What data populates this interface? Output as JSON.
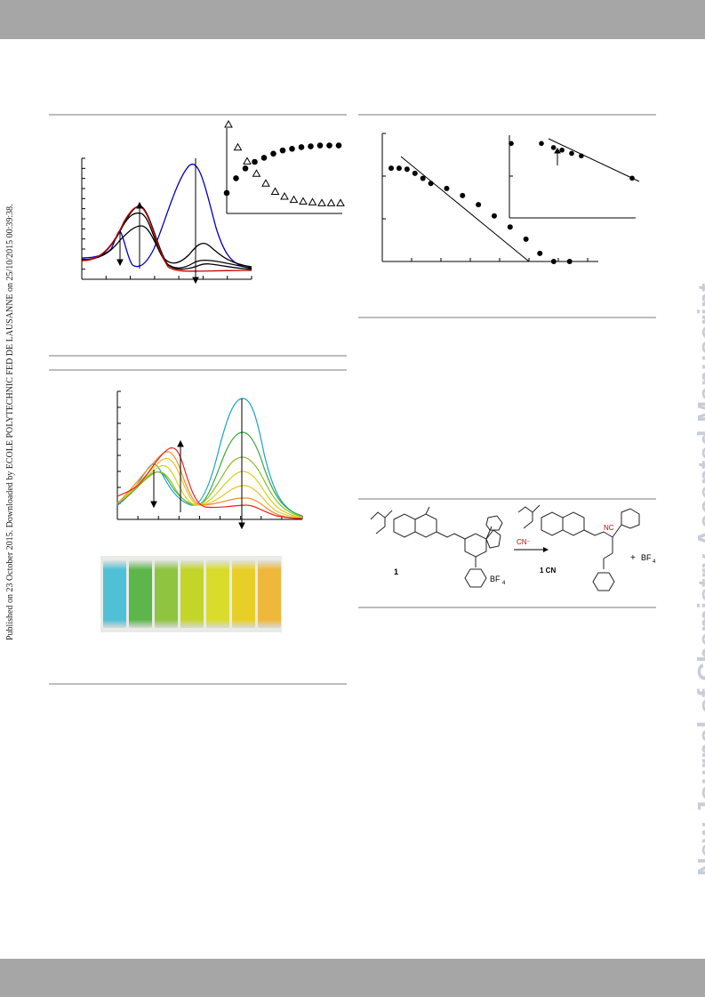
{
  "side_note": "Published on 23 October 2015. Downloaded by ECOLE POLYTECHNIC FED DE LAUSANNE on 25/10/2015 00:39:38.",
  "watermark": "New Journal of Chemistry Accepted Manuscript",
  "scheme": {
    "compound_1": "1",
    "product": "1 CN",
    "reagent": "CN⁻",
    "bf4_left": "BF",
    "bf4_right": "BF",
    "plus": "+",
    "nc_label": "NC"
  },
  "vials": {
    "colors": [
      "#4fc0d6",
      "#5cb64a",
      "#8ec43f",
      "#c4d52a",
      "#d9dc2a",
      "#e8cf27",
      "#efb83a"
    ]
  },
  "chart_data": [
    {
      "type": "line",
      "panel": "fig1-main",
      "series_colors": [
        "#0000cc",
        "#000000",
        "#cc0000"
      ]
    },
    {
      "type": "scatter",
      "panel": "fig1-inset",
      "series": [
        {
          "marker": "filled-circle",
          "values": [
            0.12,
            0.3,
            0.42,
            0.5,
            0.55,
            0.6,
            0.64,
            0.66,
            0.68,
            0.69,
            0.7,
            0.7,
            0.7
          ]
        },
        {
          "marker": "open-triangle",
          "values": [
            1.0,
            0.72,
            0.55,
            0.4,
            0.28,
            0.18,
            0.12,
            0.08,
            0.06,
            0.05,
            0.04,
            0.04,
            0.04
          ]
        }
      ]
    },
    {
      "type": "scatter",
      "panel": "fig2-main",
      "x": [
        0.0,
        0.04,
        0.08,
        0.12,
        0.16,
        0.2,
        0.28,
        0.36,
        0.44,
        0.52,
        0.6,
        0.68,
        0.75,
        0.82,
        0.9
      ],
      "y": [
        0.92,
        0.92,
        0.91,
        0.87,
        0.82,
        0.77,
        0.72,
        0.65,
        0.56,
        0.45,
        0.34,
        0.22,
        0.08,
        0.0,
        0.0
      ]
    },
    {
      "type": "scatter",
      "panel": "fig2-inset",
      "x": [
        0.0,
        0.25,
        0.35,
        0.42,
        0.5,
        0.58,
        1.0
      ],
      "y": [
        0.9,
        0.9,
        0.85,
        0.82,
        0.78,
        0.75,
        0.48
      ]
    },
    {
      "type": "line",
      "panel": "fig3-main",
      "series_colors": [
        "#1aa3c9",
        "#3aa640",
        "#8bbf2a",
        "#d6d21f",
        "#e8c42a",
        "#ef8f2a",
        "#e8231f"
      ]
    }
  ]
}
